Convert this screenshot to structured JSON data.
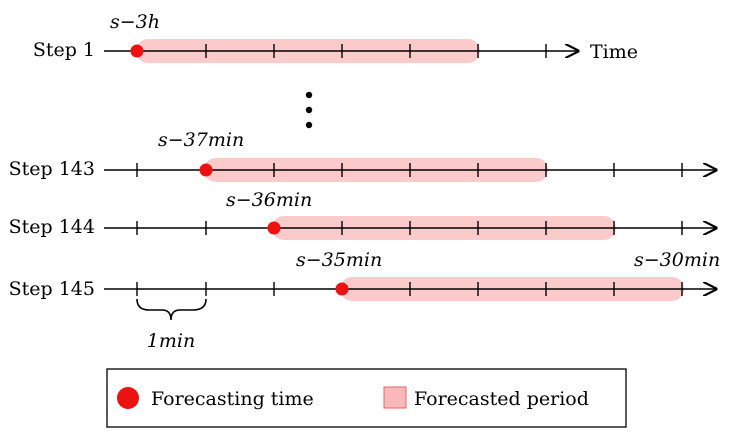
{
  "time_label": "Time",
  "ellipsis": "⋮",
  "unit_label": "1min",
  "rows": [
    {
      "label": "Step 1",
      "start_label": "s−3h",
      "end_label": ""
    },
    {
      "label": "Step 143",
      "start_label": "s−37min",
      "end_label": ""
    },
    {
      "label": "Step 144",
      "start_label": "s−36min",
      "end_label": ""
    },
    {
      "label": "Step 145",
      "start_label": "s−35min",
      "end_label": "s−30min"
    }
  ],
  "legend": {
    "forecasting_time": "Forecasting time",
    "forecasted_period": "Forecasted period"
  },
  "colors": {
    "forecast_point": "#ee1111",
    "forecast_band": "#f9b9b9"
  },
  "icons": {
    "forecast_point": "red-circle-icon",
    "forecast_band": "pink-rectangle-icon"
  }
}
